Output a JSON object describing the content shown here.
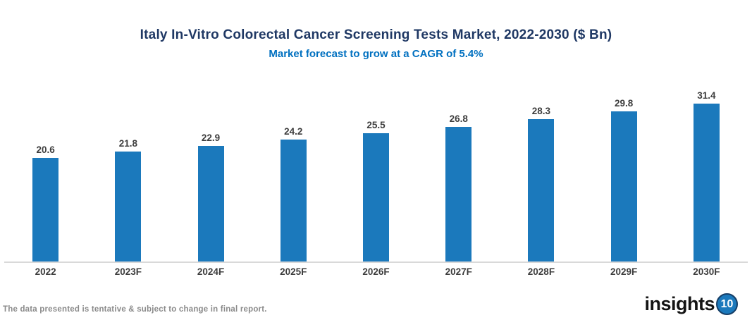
{
  "title": "Italy In-Vitro Colorectal Cancer Screening Tests Market, 2022-2030 ($ Bn)",
  "subtitle": "Market forecast to grow at a CAGR of 5.4%",
  "footer": {
    "disclaimer": "The data presented is tentative & subject to change in final report."
  },
  "logo": {
    "text": "insights",
    "badge": "10"
  },
  "colors": {
    "title": "#1F3864",
    "subtitle": "#0070C0",
    "bar": "#1B79BC",
    "axis_line": "#D9D9D9",
    "label": "#3D3D3D",
    "footer_text": "#8A8A8A",
    "logo_badge": "#1B79BC"
  },
  "chart_data": {
    "type": "bar",
    "title": "Italy In-Vitro Colorectal Cancer Screening Tests Market, 2022-2030 ($ Bn)",
    "subtitle": "Market forecast to grow at a CAGR of 5.4%",
    "categories": [
      "2022",
      "2023F",
      "2024F",
      "2025F",
      "2026F",
      "2027F",
      "2028F",
      "2029F",
      "2030F"
    ],
    "values": [
      20.6,
      21.8,
      22.9,
      24.2,
      25.5,
      26.8,
      28.3,
      29.8,
      31.4
    ],
    "cagr_percent": 5.4,
    "xlabel": "",
    "ylabel": "",
    "unit": "$ Bn",
    "ylim": [
      0,
      35
    ],
    "grid": false,
    "legend": "none",
    "data_labels": true,
    "data_label_decimals": 1
  }
}
